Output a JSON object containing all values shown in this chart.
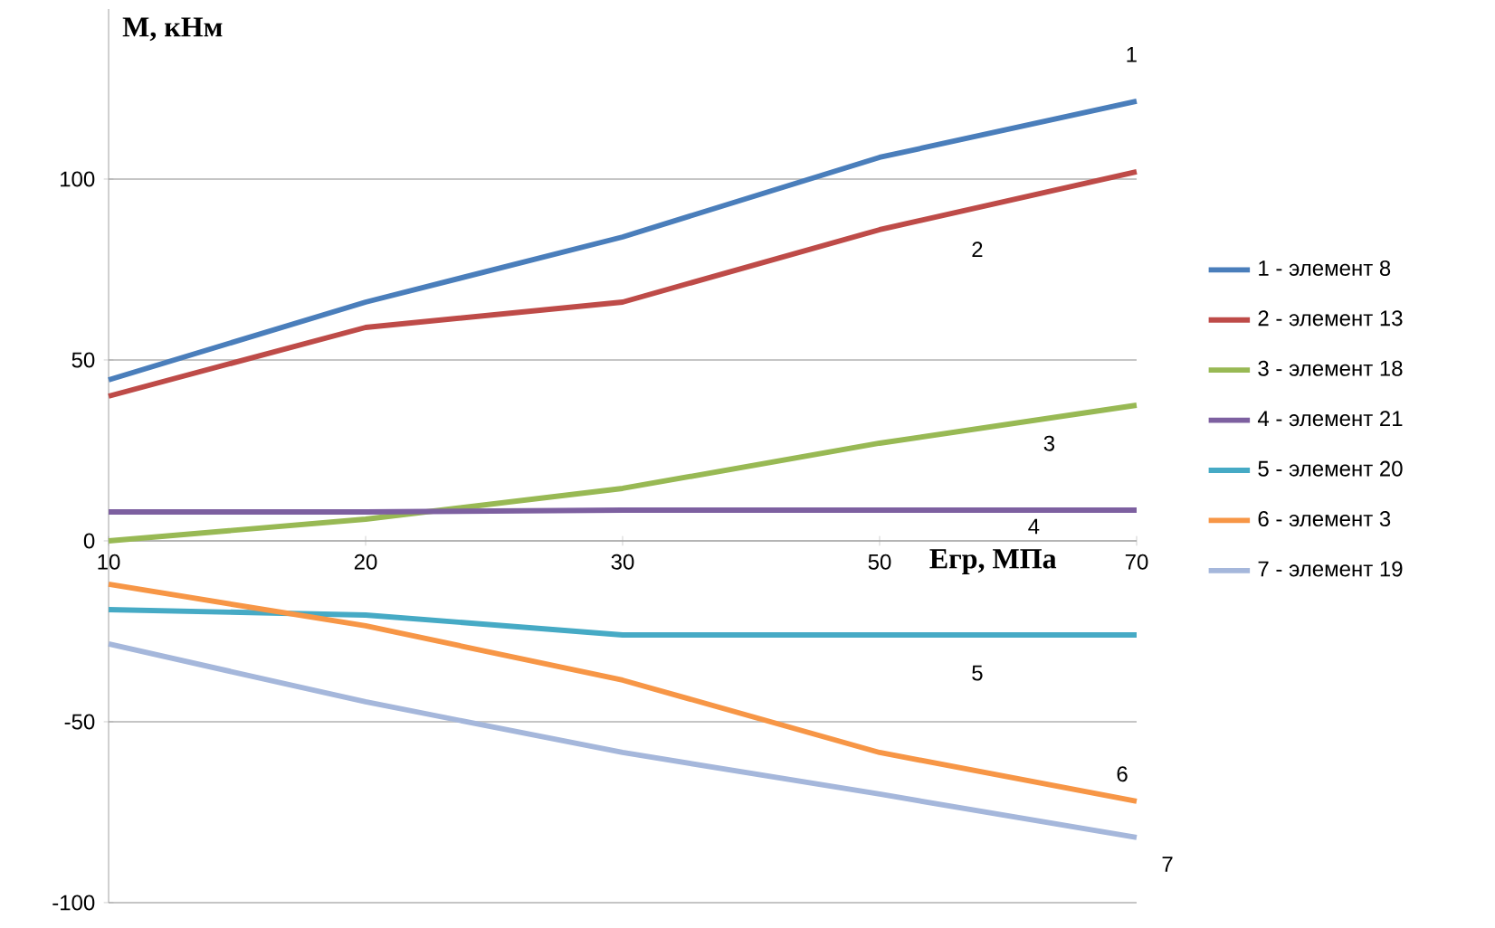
{
  "chart_data": {
    "type": "line",
    "xlabel": "Егр, МПа",
    "ylabel": "М, кНм",
    "categories": [
      "10",
      "20",
      "30",
      "50",
      "70"
    ],
    "ylim": [
      -100,
      147
    ],
    "yticks": [
      -100,
      -50,
      0,
      50,
      100
    ],
    "grid": "y",
    "legend": "right",
    "series": [
      {
        "name": "1 - элемент 8",
        "color": "#4a7ebb",
        "values": [
          44.5,
          66,
          84,
          106,
          121.5
        ]
      },
      {
        "name": "2 - элемент 13",
        "color": "#be4b48",
        "values": [
          40,
          59,
          66,
          86,
          102
        ]
      },
      {
        "name": "3 - элемент 18",
        "color": "#98b954",
        "values": [
          0,
          6,
          14.5,
          27,
          37.5
        ]
      },
      {
        "name": "4 - элемент 21",
        "color": "#7d60a0",
        "values": [
          8,
          8,
          8.5,
          8.5,
          8.5
        ]
      },
      {
        "name": "5 - элемент 20",
        "color": "#46aac5",
        "values": [
          -19,
          -20.5,
          -26,
          -26,
          -26
        ]
      },
      {
        "name": "6 - элемент 3",
        "color": "#f79646",
        "values": [
          -12,
          -23.5,
          -38.5,
          -58.5,
          -72
        ]
      },
      {
        "name": "7 - элемент 19",
        "color": "#a5b7db",
        "values": [
          -28.5,
          -44.5,
          -58.5,
          -70,
          -82
        ]
      }
    ],
    "annotations": [
      "1",
      "2",
      "3",
      "4",
      "5",
      "6",
      "7"
    ]
  }
}
